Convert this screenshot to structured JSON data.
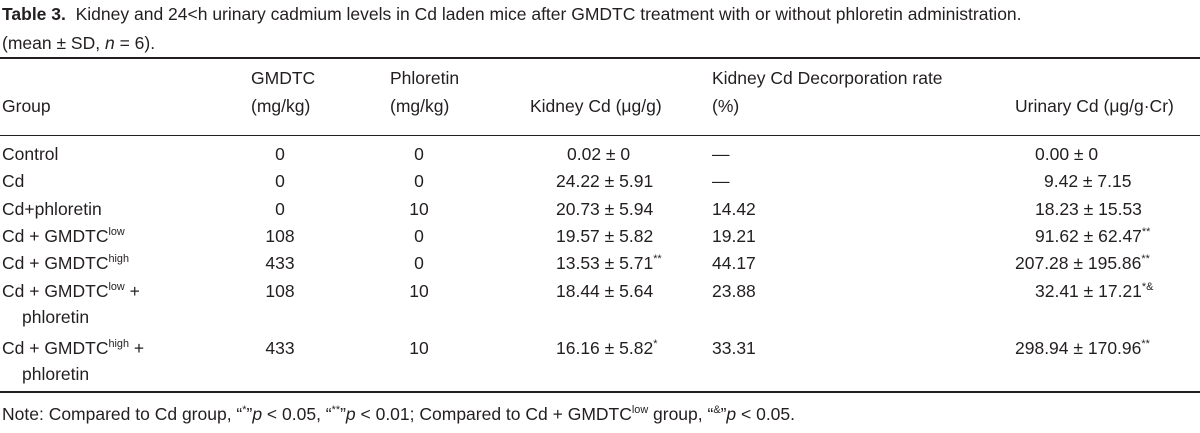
{
  "caption": {
    "label": "Table 3.",
    "text_line1": "Kidney and 24<h urinary cadmium levels in Cd laden mice after GMDTC treatment with or without phloretin administration.",
    "text_line2_pre": "(mean ± SD, ",
    "text_line2_n": "n",
    "text_line2_post": " = 6)."
  },
  "headers": {
    "group": "Group",
    "gmdtc_l1": "GMDTC",
    "gmdtc_l2": "(mg/kg)",
    "phloretin_l1": "Phloretin",
    "phloretin_l2": "(mg/kg)",
    "kidney_cd": "Kidney Cd (μg/g)",
    "decorp_l1": "Kidney Cd Decorporation rate",
    "decorp_l2": "(%)",
    "urinary_cd": "Urinary Cd (μg/g·Cr)"
  },
  "rows": [
    {
      "group": "Control",
      "gmdtc": "0",
      "phloretin": "0",
      "kidney": "0.02 ± 0",
      "kidney_sup": "",
      "decorp": "—",
      "urinary": "0.00 ± 0",
      "urinary_sup": ""
    },
    {
      "group": "Cd",
      "gmdtc": "0",
      "phloretin": "0",
      "kidney": "24.22 ± 5.91",
      "kidney_sup": "",
      "decorp": "—",
      "urinary": "9.42 ± 7.15",
      "urinary_sup": ""
    },
    {
      "group": "Cd+phloretin",
      "gmdtc": "0",
      "phloretin": "10",
      "kidney": "20.73 ± 5.94",
      "kidney_sup": "",
      "decorp": "14.42",
      "urinary": "18.23 ± 15.53",
      "urinary_sup": ""
    },
    {
      "group_pre": "Cd + GMDTC",
      "group_sup": "low",
      "gmdtc": "108",
      "phloretin": "0",
      "kidney": "19.57 ± 5.82",
      "kidney_sup": "",
      "decorp": "19.21",
      "urinary": "91.62 ± 62.47",
      "urinary_sup": "**"
    },
    {
      "group_pre": "Cd + GMDTC",
      "group_sup": "high",
      "gmdtc": "433",
      "phloretin": "0",
      "kidney": "13.53 ± 5.71",
      "kidney_sup": "**",
      "decorp": "44.17",
      "urinary": "207.28 ± 195.86",
      "urinary_sup": "**"
    },
    {
      "group_pre": "Cd + GMDTC",
      "group_sup": "low",
      "group_post": " +",
      "group_line2": "phloretin",
      "gmdtc": "108",
      "phloretin": "10",
      "kidney": "18.44 ± 5.64",
      "kidney_sup": "",
      "decorp": "23.88",
      "urinary": "32.41 ± 17.21",
      "urinary_sup": "*&"
    },
    {
      "group_pre": "Cd + GMDTC",
      "group_sup": "high",
      "group_post": " +",
      "group_line2": "phloretin",
      "gmdtc": "433",
      "phloretin": "10",
      "kidney": "16.16 ± 5.82",
      "kidney_sup": "*",
      "decorp": "33.31",
      "urinary": "298.94 ± 170.96",
      "urinary_sup": "**"
    }
  ],
  "note": {
    "a": "Note: Compared to Cd group, “",
    "b": "*",
    "c": "”",
    "d": "p",
    "e": " < 0.05, “",
    "f": "**",
    "g": "”",
    "h": "p",
    "i": " < 0.01; Compared to Cd + GMDTC",
    "j": "low",
    "k": " group, “",
    "l": "&",
    "m": "”",
    "n": "p",
    "o": " < 0.05."
  }
}
